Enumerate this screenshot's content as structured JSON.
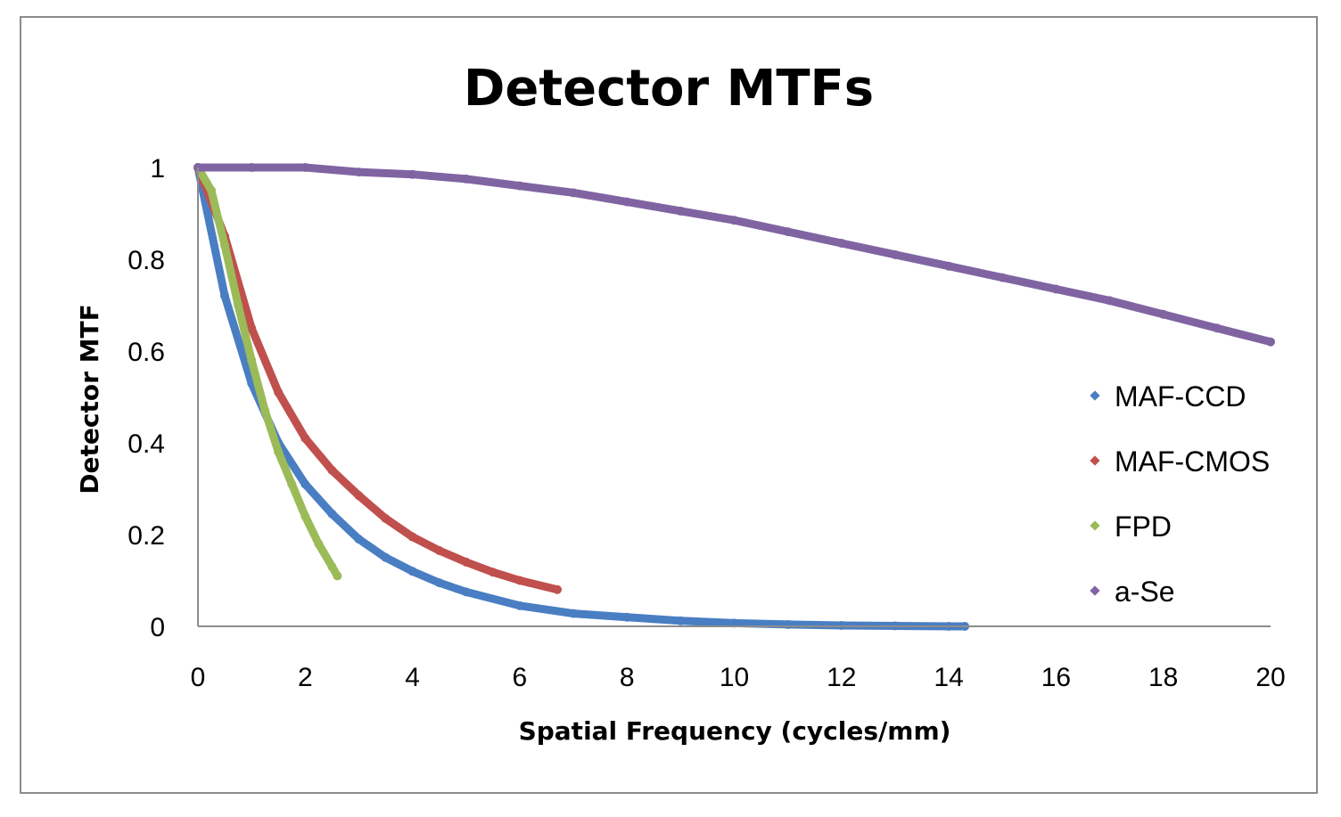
{
  "chart_data": {
    "type": "scatter",
    "title": "Detector MTFs",
    "xlabel": "Spatial Frequency (cycles/mm)",
    "ylabel": "Detector MTF",
    "xlim": [
      0,
      20
    ],
    "ylim": [
      0,
      1
    ],
    "xticks": [
      "0",
      "2",
      "4",
      "6",
      "8",
      "10",
      "12",
      "14",
      "16",
      "18",
      "20"
    ],
    "yticks": [
      "0",
      "0.2",
      "0.4",
      "0.6",
      "0.8",
      "1"
    ],
    "grid": false,
    "legend_position": "right",
    "series": [
      {
        "name": "MAF-CCD",
        "color": "#4a7ec3",
        "x": [
          0,
          0.5,
          1,
          1.5,
          2,
          2.5,
          3,
          3.5,
          4,
          4.5,
          5,
          6,
          7,
          8,
          9,
          10,
          11,
          12,
          13,
          14,
          14.3
        ],
        "y": [
          1,
          0.72,
          0.53,
          0.4,
          0.31,
          0.245,
          0.19,
          0.15,
          0.12,
          0.095,
          0.075,
          0.045,
          0.028,
          0.02,
          0.012,
          0.007,
          0.004,
          0.002,
          0.001,
          0,
          0
        ]
      },
      {
        "name": "MAF-CMOS",
        "color": "#c0504d",
        "x": [
          0,
          0.5,
          1,
          1.5,
          2,
          2.5,
          3,
          3.5,
          4,
          4.5,
          5,
          5.5,
          6,
          6.7
        ],
        "y": [
          1,
          0.85,
          0.65,
          0.51,
          0.41,
          0.34,
          0.285,
          0.235,
          0.195,
          0.165,
          0.14,
          0.118,
          0.1,
          0.08
        ]
      },
      {
        "name": "FPD",
        "color": "#9bbb59",
        "x": [
          0,
          0.25,
          0.5,
          0.75,
          1,
          1.25,
          1.5,
          1.75,
          2,
          2.25,
          2.5,
          2.6
        ],
        "y": [
          1,
          0.95,
          0.83,
          0.7,
          0.58,
          0.47,
          0.38,
          0.31,
          0.24,
          0.18,
          0.13,
          0.11
        ]
      },
      {
        "name": "a-Se",
        "color": "#8064a2",
        "x": [
          0,
          1,
          2,
          3,
          4,
          5,
          6,
          7,
          8,
          9,
          10,
          11,
          12,
          13,
          14,
          15,
          16,
          17,
          18,
          19,
          20
        ],
        "y": [
          1,
          1,
          1,
          0.99,
          0.985,
          0.975,
          0.96,
          0.945,
          0.925,
          0.905,
          0.885,
          0.86,
          0.835,
          0.81,
          0.785,
          0.76,
          0.735,
          0.71,
          0.68,
          0.65,
          0.62
        ]
      }
    ]
  }
}
